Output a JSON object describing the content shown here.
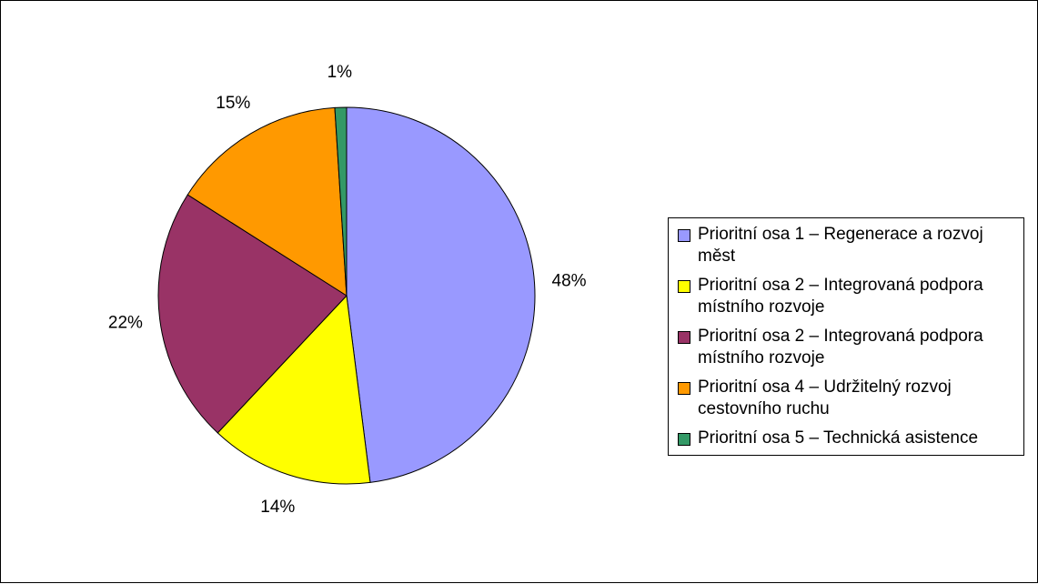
{
  "chart_data": {
    "type": "pie",
    "categories": [
      "Prioritní osa 1 – Regenerace a rozvoj měst",
      "Prioritní osa 2 – Integrovaná podpora místního rozvoje",
      "Prioritní osa 2 – Integrovaná podpora místního rozvoje",
      "Prioritní osa 4 – Udržitelný rozvoj cestovního ruchu",
      "Prioritní osa 5 – Technická asistence"
    ],
    "values": [
      48,
      14,
      22,
      15,
      1
    ],
    "value_labels": [
      "48%",
      "14%",
      "22%",
      "15%",
      "1%"
    ],
    "colors": [
      "#9999ff",
      "#ffff00",
      "#993366",
      "#ff9900",
      "#339966"
    ],
    "legend": "right"
  }
}
